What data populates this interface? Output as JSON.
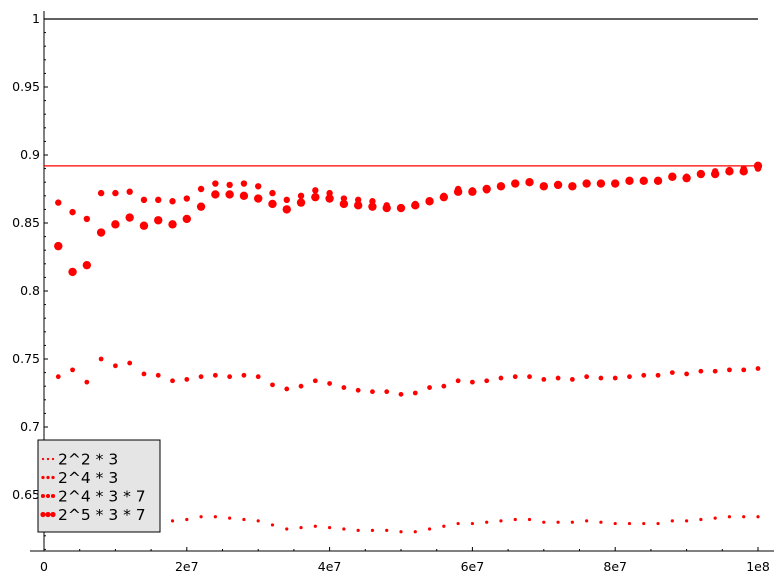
{
  "chart_data": {
    "type": "scatter",
    "title": "",
    "xlabel": "",
    "ylabel": "",
    "xlim": [
      0,
      100000000
    ],
    "ylim": [
      0.61,
      1.0
    ],
    "x_ticks": [
      0,
      20000000,
      40000000,
      60000000,
      80000000,
      100000000
    ],
    "x_tick_labels": [
      "0",
      "2e7",
      "4e7",
      "6e7",
      "8e7",
      "1e8"
    ],
    "y_ticks": [
      0.65,
      0.7,
      0.75,
      0.8,
      0.85,
      0.9,
      0.95,
      1.0
    ],
    "y_tick_labels": [
      "0.65",
      "0.7",
      "0.75",
      "0.8",
      "0.85",
      "0.9",
      "0.95",
      "1"
    ],
    "grid": false,
    "legend_position": "lower-left",
    "colors": {
      "series": "#ff0000",
      "reference_black": "#000000",
      "reference_red": "#ff0000"
    },
    "reference_lines": [
      {
        "y": 1.0,
        "color": "#000000"
      },
      {
        "y": 0.892,
        "color": "#ff0000"
      }
    ],
    "x": [
      2000000,
      4000000,
      6000000,
      8000000,
      10000000,
      12000000,
      14000000,
      16000000,
      18000000,
      20000000,
      22000000,
      24000000,
      26000000,
      28000000,
      30000000,
      32000000,
      34000000,
      36000000,
      38000000,
      40000000,
      42000000,
      44000000,
      46000000,
      48000000,
      50000000,
      52000000,
      54000000,
      56000000,
      58000000,
      60000000,
      62000000,
      64000000,
      66000000,
      68000000,
      70000000,
      72000000,
      74000000,
      76000000,
      78000000,
      80000000,
      82000000,
      84000000,
      86000000,
      88000000,
      90000000,
      92000000,
      94000000,
      96000000,
      98000000,
      100000000
    ],
    "series": [
      {
        "name": "2^2 * 3",
        "marker_size": 1.6,
        "values": [
          null,
          null,
          null,
          null,
          null,
          null,
          null,
          null,
          0.631,
          0.632,
          0.634,
          0.634,
          0.633,
          0.632,
          0.631,
          0.628,
          0.625,
          0.626,
          0.627,
          0.626,
          0.625,
          0.624,
          0.624,
          0.624,
          0.623,
          0.623,
          0.625,
          0.627,
          0.629,
          0.629,
          0.63,
          0.631,
          0.632,
          0.632,
          0.63,
          0.63,
          0.63,
          0.631,
          0.63,
          0.629,
          0.629,
          0.629,
          0.629,
          0.631,
          0.631,
          0.632,
          0.633,
          0.634,
          0.634,
          0.634
        ]
      },
      {
        "name": "2^4 * 3",
        "marker_size": 2.4,
        "values": [
          0.737,
          0.742,
          0.733,
          0.75,
          0.745,
          0.747,
          0.739,
          0.738,
          0.734,
          0.735,
          0.737,
          0.738,
          0.737,
          0.738,
          0.737,
          0.731,
          0.728,
          0.73,
          0.734,
          0.732,
          0.729,
          0.727,
          0.726,
          0.726,
          0.724,
          0.725,
          0.729,
          0.73,
          0.734,
          0.733,
          0.734,
          0.736,
          0.737,
          0.737,
          0.735,
          0.736,
          0.735,
          0.737,
          0.736,
          0.736,
          0.737,
          0.738,
          0.738,
          0.74,
          0.739,
          0.741,
          0.741,
          0.742,
          0.742,
          0.743
        ]
      },
      {
        "name": "2^4 * 3 * 7",
        "marker_size": 3.2,
        "values": [
          0.865,
          0.858,
          0.853,
          0.872,
          0.872,
          0.873,
          0.867,
          0.867,
          0.866,
          0.868,
          0.875,
          0.879,
          0.878,
          0.879,
          0.877,
          0.872,
          0.867,
          0.87,
          0.874,
          0.872,
          0.868,
          0.867,
          0.866,
          0.863,
          0.861,
          0.864,
          0.866,
          0.87,
          0.875,
          0.874,
          0.874,
          0.877,
          0.879,
          0.88,
          0.877,
          0.878,
          0.877,
          0.879,
          0.879,
          0.879,
          0.881,
          0.881,
          0.881,
          0.884,
          0.884,
          0.886,
          0.888,
          0.889,
          0.89,
          0.89
        ]
      },
      {
        "name": "2^5 * 3 * 7",
        "marker_size": 4.2,
        "values": [
          0.833,
          0.814,
          0.819,
          0.843,
          0.849,
          0.854,
          0.848,
          0.852,
          0.849,
          0.853,
          0.862,
          0.871,
          0.871,
          0.87,
          0.868,
          0.864,
          0.86,
          0.865,
          0.869,
          0.868,
          0.864,
          0.863,
          0.862,
          0.861,
          0.861,
          0.863,
          0.866,
          0.869,
          0.873,
          0.873,
          0.875,
          0.877,
          0.879,
          0.88,
          0.877,
          0.878,
          0.877,
          0.879,
          0.879,
          0.879,
          0.881,
          0.881,
          0.881,
          0.884,
          0.883,
          0.886,
          0.886,
          0.888,
          0.888,
          0.892
        ]
      }
    ]
  }
}
